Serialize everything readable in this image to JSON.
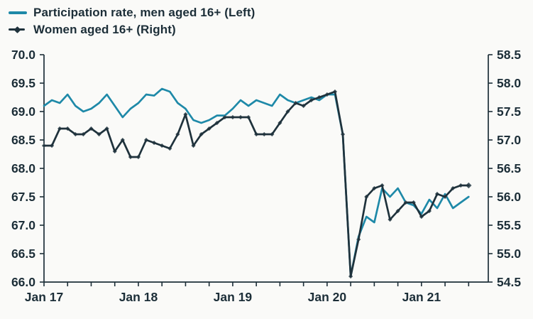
{
  "legend": {
    "items": [
      {
        "label": "Participation rate, men aged 16+ (Left)",
        "color": "#1e89a8",
        "marker": "line"
      },
      {
        "label": "Women aged 16+ (Right)",
        "color": "#1f323c",
        "marker": "line-diamond"
      }
    ],
    "position": "top-left"
  },
  "colors": {
    "men_line": "#1e89a8",
    "women_line": "#1f323c",
    "women_marker": "#4a5a63",
    "axis": "#1c2e38",
    "background": "#fafaf8"
  },
  "chart_data": {
    "type": "line",
    "x": [
      "2017-01",
      "2017-02",
      "2017-03",
      "2017-04",
      "2017-05",
      "2017-06",
      "2017-07",
      "2017-08",
      "2017-09",
      "2017-10",
      "2017-11",
      "2017-12",
      "2018-01",
      "2018-02",
      "2018-03",
      "2018-04",
      "2018-05",
      "2018-06",
      "2018-07",
      "2018-08",
      "2018-09",
      "2018-10",
      "2018-11",
      "2018-12",
      "2019-01",
      "2019-02",
      "2019-03",
      "2019-04",
      "2019-05",
      "2019-06",
      "2019-07",
      "2019-08",
      "2019-09",
      "2019-10",
      "2019-11",
      "2019-12",
      "2020-01",
      "2020-02",
      "2020-03",
      "2020-04",
      "2020-05",
      "2020-06",
      "2020-07",
      "2020-08",
      "2020-09",
      "2020-10",
      "2020-11",
      "2020-12",
      "2021-01",
      "2021-02",
      "2021-03",
      "2021-04",
      "2021-05",
      "2021-06",
      "2021-07"
    ],
    "series": [
      {
        "name": "Participation rate, men aged 16+ (Left)",
        "axis": "left",
        "color": "#1e89a8",
        "marker": "none",
        "values": [
          69.1,
          69.2,
          69.15,
          69.3,
          69.1,
          69.0,
          69.05,
          69.15,
          69.3,
          69.1,
          68.9,
          69.05,
          69.15,
          69.3,
          69.28,
          69.4,
          69.35,
          69.15,
          69.05,
          68.85,
          68.8,
          68.85,
          68.93,
          68.93,
          69.05,
          69.2,
          69.1,
          69.2,
          69.15,
          69.1,
          69.3,
          69.2,
          69.15,
          69.2,
          69.25,
          69.2,
          69.3,
          69.3,
          68.6,
          66.1,
          66.8,
          67.15,
          67.05,
          67.65,
          67.5,
          67.65,
          67.4,
          67.35,
          67.2,
          67.45,
          67.3,
          67.55,
          67.3,
          67.4,
          67.5
        ]
      },
      {
        "name": "Women aged 16+ (Right)",
        "axis": "right",
        "color": "#1f323c",
        "marker": "diamond",
        "values": [
          56.9,
          56.9,
          57.2,
          57.2,
          57.1,
          57.1,
          57.2,
          57.1,
          57.2,
          56.8,
          57.0,
          56.7,
          56.7,
          57.0,
          56.95,
          56.9,
          56.85,
          57.1,
          57.45,
          56.9,
          57.1,
          57.2,
          57.3,
          57.4,
          57.4,
          57.4,
          57.4,
          57.1,
          57.1,
          57.1,
          57.3,
          57.5,
          57.65,
          57.6,
          57.7,
          57.75,
          57.8,
          57.85,
          57.1,
          54.6,
          55.25,
          56.0,
          56.15,
          56.2,
          55.6,
          55.75,
          55.9,
          55.9,
          55.65,
          55.75,
          56.05,
          56.0,
          56.15,
          56.2,
          56.2
        ]
      }
    ],
    "left_axis": {
      "min": 66.0,
      "max": 70.0,
      "tick_step": 0.5,
      "tick_labels": [
        "66.0",
        "66.5",
        "67.0",
        "67.5",
        "68.0",
        "68.5",
        "69.0",
        "69.5",
        "70.0"
      ]
    },
    "right_axis": {
      "min": 54.5,
      "max": 58.5,
      "tick_step": 0.5,
      "tick_labels": [
        "54.5",
        "55.0",
        "55.5",
        "56.0",
        "56.5",
        "57.0",
        "57.5",
        "58.0",
        "58.5"
      ]
    },
    "x_axis": {
      "tick_every_months": 3,
      "year_tick_labels": [
        "Jan 17",
        "Jan 18",
        "Jan 19",
        "Jan 20",
        "Jan 21"
      ]
    },
    "grid": false,
    "legend_position": "top-left"
  }
}
